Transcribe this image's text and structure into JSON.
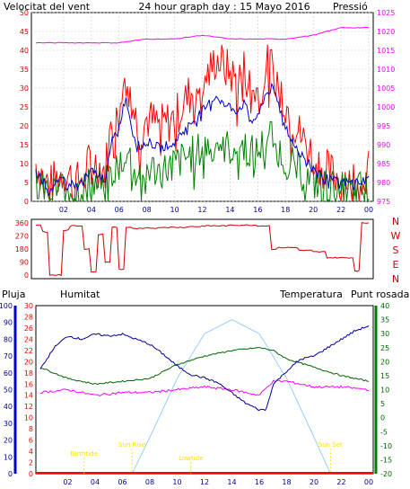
{
  "header": {
    "left_label": "Velocitat del vent",
    "title": "24 hour graph day : 15 Mayo 2016",
    "right_label": "Pressió"
  },
  "lower_header": {
    "rain_label": "Pluja",
    "humidity_label": "Humitat",
    "temperature_label": "Temperatura",
    "dewpoint_label": "Punt rosada"
  },
  "colors": {
    "wind_gust": "#ff0000",
    "wind_speed": "#0000cc",
    "wind_avg": "#008000",
    "pressure": "#ff00ff",
    "direction": "#cc0000",
    "humidity": "#000099",
    "temperature": "#006600",
    "dewpoint": "#ff00ff",
    "sun": "#99ccff",
    "sun_events": "#ffdd00",
    "rain": "#ff0000"
  },
  "chart_data": [
    {
      "id": "wind_pressure",
      "type": "line",
      "x_ticks": [
        "02",
        "04",
        "06",
        "08",
        "10",
        "12",
        "14",
        "16",
        "18",
        "20",
        "22",
        "00"
      ],
      "y_left_ticks": [
        "0",
        "5",
        "10",
        "15",
        "20",
        "25",
        "30",
        "35",
        "40",
        "45",
        "50"
      ],
      "ylim_left": [
        0,
        50
      ],
      "y_right_ticks": [
        "975",
        "980",
        "985",
        "990",
        "995",
        "1000",
        "1005",
        "1010",
        "1015",
        "1020",
        "1025"
      ],
      "ylim_right": [
        975,
        1025
      ],
      "grid": true,
      "series": [
        {
          "name": "Velocitat del vent",
          "role": "gust",
          "axis": "left",
          "x": [
            0,
            1,
            2,
            3,
            4,
            5,
            5.5,
            6,
            6.5,
            7,
            7.5,
            8,
            9,
            10,
            11,
            12,
            12.5,
            13,
            13.5,
            14,
            14.5,
            15,
            15.5,
            16,
            16.5,
            17,
            17.5,
            18,
            19,
            20,
            21,
            22,
            23,
            24
          ],
          "y": [
            10,
            4,
            8,
            5,
            11,
            8,
            22,
            26,
            39,
            25,
            18,
            22,
            20,
            22,
            28,
            32,
            34,
            38,
            36,
            34,
            32,
            35,
            30,
            29,
            36,
            36,
            32,
            26,
            18,
            12,
            8,
            6,
            7,
            8
          ]
        },
        {
          "name": "",
          "role": "speed",
          "axis": "left",
          "x": [
            0,
            1,
            2,
            3,
            4,
            5,
            5.5,
            6,
            6.5,
            7,
            7.5,
            8,
            9,
            10,
            11,
            12,
            12.5,
            13,
            13.5,
            14,
            14.5,
            15,
            15.5,
            16,
            16.5,
            17,
            17.5,
            18,
            19,
            20,
            21,
            22,
            23,
            24
          ],
          "y": [
            8,
            3,
            6,
            4,
            8,
            6,
            16,
            20,
            28,
            18,
            14,
            16,
            14,
            16,
            20,
            24,
            26,
            28,
            26,
            25,
            24,
            26,
            22,
            22,
            28,
            30,
            26,
            20,
            13,
            9,
            6,
            5,
            5,
            6
          ]
        },
        {
          "name": "",
          "role": "average",
          "axis": "left",
          "x": [
            0,
            1,
            2,
            3,
            4,
            5,
            5.5,
            6,
            6.5,
            7,
            7.5,
            8,
            9,
            10,
            11,
            12,
            12.5,
            13,
            13.5,
            14,
            14.5,
            15,
            15.5,
            16,
            16.5,
            17,
            17.5,
            18,
            19,
            20,
            21,
            22,
            23,
            24
          ],
          "y": [
            5,
            2,
            4,
            3,
            5,
            4,
            8,
            10,
            14,
            10,
            8,
            9,
            8,
            10,
            12,
            14,
            15,
            16,
            15,
            14,
            14,
            15,
            13,
            13,
            16,
            18,
            14,
            11,
            8,
            5,
            4,
            3,
            3,
            4
          ]
        },
        {
          "name": "Pressió",
          "role": "pressure",
          "axis": "right",
          "x": [
            0,
            2,
            4,
            6,
            8,
            10,
            12,
            14,
            16,
            18,
            20,
            22,
            23,
            24
          ],
          "y": [
            1017,
            1017,
            1017,
            1017,
            1018,
            1018,
            1019,
            1018,
            1018,
            1018,
            1019,
            1021,
            1021,
            1021
          ]
        }
      ]
    },
    {
      "id": "wind_direction",
      "type": "line",
      "y_left_ticks": [
        "360",
        "270",
        "180",
        "90",
        "0"
      ],
      "ylim": [
        0,
        360
      ],
      "direction_letters": [
        "N",
        "W",
        "S",
        "E",
        "N"
      ],
      "series": [
        {
          "name": "",
          "role": "direction",
          "x": [
            0,
            0.5,
            1,
            1.5,
            2,
            2.5,
            3,
            3.5,
            4,
            4.5,
            5,
            5.5,
            6,
            6.5,
            7,
            8,
            9,
            10,
            11,
            12,
            13,
            14,
            15,
            16,
            16.5,
            17,
            17.5,
            18,
            19,
            20,
            21,
            22,
            23,
            23.3,
            23.5,
            24
          ],
          "y": [
            345,
            300,
            0,
            0,
            310,
            340,
            340,
            180,
            20,
            280,
            90,
            330,
            40,
            330,
            320,
            325,
            330,
            330,
            335,
            340,
            340,
            345,
            345,
            340,
            340,
            180,
            190,
            190,
            170,
            160,
            120,
            120,
            30,
            30,
            360,
            360
          ]
        }
      ]
    },
    {
      "id": "rain_humidity_temp",
      "type": "line",
      "y_left_rain_ticks": [
        "0",
        "2",
        "4",
        "6",
        "8",
        "10",
        "12",
        "14",
        "16",
        "18",
        "20",
        "22",
        "24",
        "26",
        "28",
        "30"
      ],
      "y_left_hum_ticks": [
        "0",
        "10",
        "20",
        "30",
        "40",
        "50",
        "60",
        "70",
        "80",
        "90",
        "100"
      ],
      "y_right_temp_ticks": [
        "-20",
        "-15",
        "-10",
        "-5",
        "0",
        "5",
        "10",
        "15",
        "20",
        "25",
        "30",
        "35",
        "40"
      ],
      "ylim_humidity": [
        0,
        100
      ],
      "ylim_temperature": [
        -20,
        40
      ],
      "sun_labels": [
        "Birthtide",
        "Sun Rise",
        "Lowtide",
        "Sun Set"
      ],
      "series": [
        {
          "name": "Humitat",
          "role": "humidity",
          "x": [
            0,
            1,
            2,
            3,
            4,
            5,
            6,
            7,
            8,
            9,
            10,
            11,
            12,
            13,
            14,
            15,
            16,
            16.5,
            17,
            18,
            19,
            20,
            21,
            22,
            23,
            24
          ],
          "y": [
            62,
            75,
            82,
            80,
            83,
            82,
            83,
            80,
            77,
            71,
            64,
            59,
            57,
            54,
            48,
            42,
            38,
            38,
            53,
            61,
            68,
            70,
            75,
            80,
            85,
            88
          ]
        },
        {
          "name": "Temperatura",
          "role": "temperature",
          "x": [
            0,
            2,
            4,
            6,
            8,
            10,
            12,
            14,
            16,
            17,
            18,
            20,
            22,
            24
          ],
          "y": [
            18,
            14,
            12,
            13,
            14,
            19,
            22,
            24,
            25,
            24,
            21,
            18,
            15,
            13
          ]
        },
        {
          "name": "Punt rosada",
          "role": "dewpoint",
          "x": [
            0,
            2,
            4,
            6,
            8,
            10,
            12,
            14,
            16,
            17,
            18,
            20,
            22,
            24
          ],
          "y": [
            9,
            10,
            8,
            9,
            9,
            10,
            11,
            10,
            8,
            13,
            13,
            11,
            11,
            10
          ]
        },
        {
          "name": "",
          "role": "sun",
          "x": [
            6.7,
            8,
            10,
            12,
            14,
            16,
            18,
            20,
            21.2
          ],
          "y": [
            -20,
            -7,
            14,
            30,
            35,
            30,
            14,
            -7,
            -20
          ]
        }
      ]
    }
  ]
}
